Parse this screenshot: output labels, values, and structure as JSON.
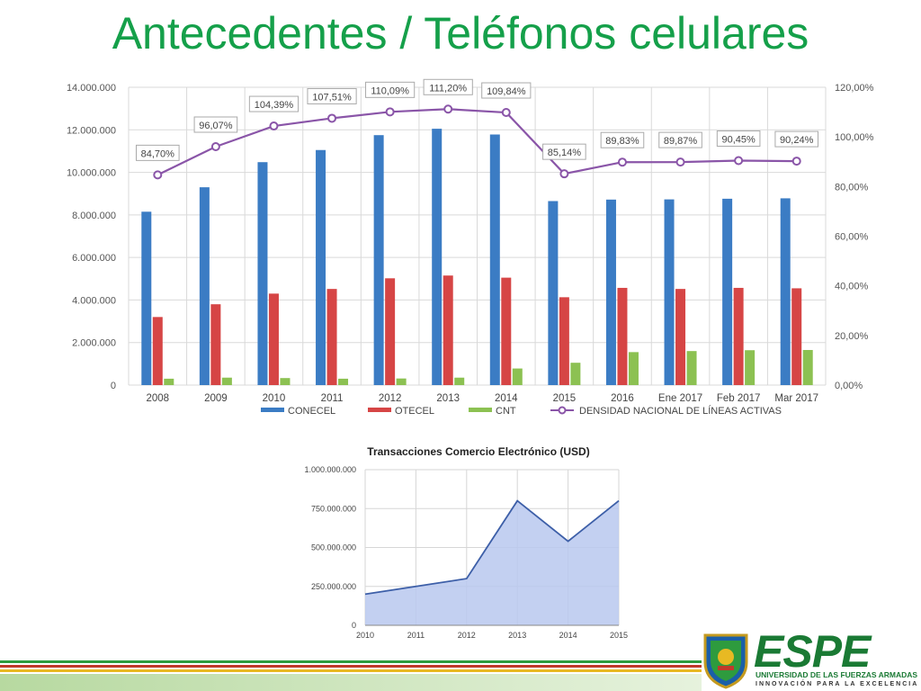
{
  "page": {
    "title": "Antecedentes / Teléfonos celulares"
  },
  "chart_data": [
    {
      "type": "bar",
      "categories": [
        "2008",
        "2009",
        "2010",
        "2011",
        "2012",
        "2013",
        "2014",
        "2015",
        "2016",
        "Ene 2017",
        "Feb 2017",
        "Mar 2017"
      ],
      "series": [
        {
          "name": "CONECEL",
          "color": "#3b7cc4",
          "values": [
            8150000,
            9300000,
            10480000,
            11050000,
            11750000,
            12050000,
            11780000,
            8650000,
            8720000,
            8730000,
            8760000,
            8780000
          ]
        },
        {
          "name": "OTECEL",
          "color": "#d64545",
          "values": [
            3200000,
            3800000,
            4300000,
            4520000,
            5020000,
            5150000,
            5050000,
            4130000,
            4570000,
            4520000,
            4570000,
            4550000
          ]
        },
        {
          "name": "CNT",
          "color": "#8cc152",
          "values": [
            300000,
            350000,
            330000,
            300000,
            310000,
            350000,
            780000,
            1050000,
            1550000,
            1600000,
            1640000,
            1650000
          ]
        }
      ],
      "line_series": {
        "name": "DENSIDAD NACIONAL DE LÍNEAS ACTIVAS",
        "color": "#8a55a8",
        "values": [
          84.7,
          96.07,
          104.39,
          107.51,
          110.09,
          111.2,
          109.84,
          85.14,
          89.83,
          89.87,
          90.45,
          90.24
        ],
        "labels": [
          "84,70%",
          "96,07%",
          "104,39%",
          "107,51%",
          "110,09%",
          "111,20%",
          "109,84%",
          "85,14%",
          "89,83%",
          "89,87%",
          "90,45%",
          "90,24%"
        ]
      },
      "ylim": [
        0,
        14000000
      ],
      "y_ticks": [
        "0",
        "2.000.000",
        "4.000.000",
        "6.000.000",
        "8.000.000",
        "10.000.000",
        "12.000.000",
        "14.000.000"
      ],
      "y2lim": [
        0,
        120
      ],
      "y2_ticks": [
        "0,00%",
        "20,00%",
        "40,00%",
        "60,00%",
        "80,00%",
        "100,00%",
        "120,00%"
      ],
      "legend": [
        "CONECEL",
        "OTECEL",
        "CNT",
        "DENSIDAD NACIONAL DE LÍNEAS ACTIVAS"
      ],
      "legend_position": "bottom",
      "grid": true
    },
    {
      "type": "area",
      "title": "Transacciones Comercio Electrónico (USD)",
      "x": [
        "2010",
        "2011",
        "2012",
        "2013",
        "2014",
        "2015"
      ],
      "values": [
        200000000,
        250000000,
        300000000,
        800000000,
        540000000,
        800000000
      ],
      "ylim": [
        0,
        1000000000
      ],
      "y_ticks": [
        "0",
        "250.000.000",
        "500.000.000",
        "750.000.000",
        "1.000.000.000"
      ],
      "line_color": "#3d5fa8",
      "fill_color": "#b9c8ee",
      "grid": true
    }
  ],
  "logo": {
    "name": "ESPE",
    "university": "UNIVERSIDAD DE LAS FUERZAS ARMADAS",
    "slogan": "INNOVACIÓN PARA LA EXCELENCIA"
  }
}
